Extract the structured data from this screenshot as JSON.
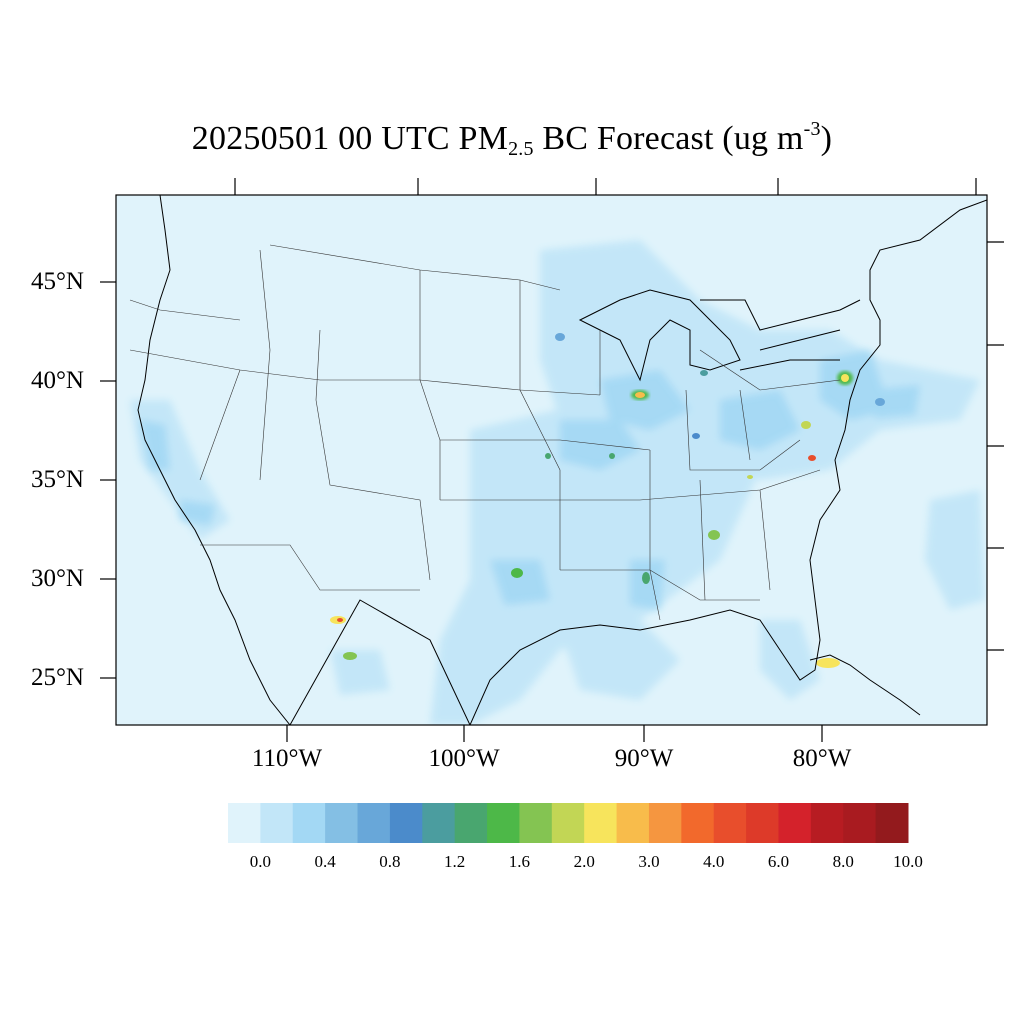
{
  "title": {
    "date": "20250501",
    "hour": "00 UTC",
    "pm": "PM",
    "pm_sub": "2.5",
    "rest": "BC Forecast (ug m",
    "unit_sup": "-3",
    "close": ")"
  },
  "lat_labels": [
    "45°N",
    "40°N",
    "35°N",
    "30°N",
    "25°N"
  ],
  "lon_labels": [
    "110°W",
    "100°W",
    "90°W",
    "80°W"
  ],
  "colorbar": {
    "labels": [
      "0.0",
      "0.4",
      "0.8",
      "1.2",
      "1.6",
      "2.0",
      "3.0",
      "4.0",
      "6.0",
      "8.0",
      "10.0"
    ],
    "colors": [
      "#e0f3fb",
      "#c2e6f8",
      "#a3d8f4",
      "#84bfe4",
      "#68a7d9",
      "#4b8bcb",
      "#4b9d9f",
      "#49a66f",
      "#4db848",
      "#84c452",
      "#c2d655",
      "#f7e45c",
      "#f8bc4b",
      "#f59640",
      "#f2692c",
      "#e84e2c",
      "#dd3a29",
      "#d4222b",
      "#b71c22",
      "#a91b20",
      "#931a1d"
    ]
  }
}
